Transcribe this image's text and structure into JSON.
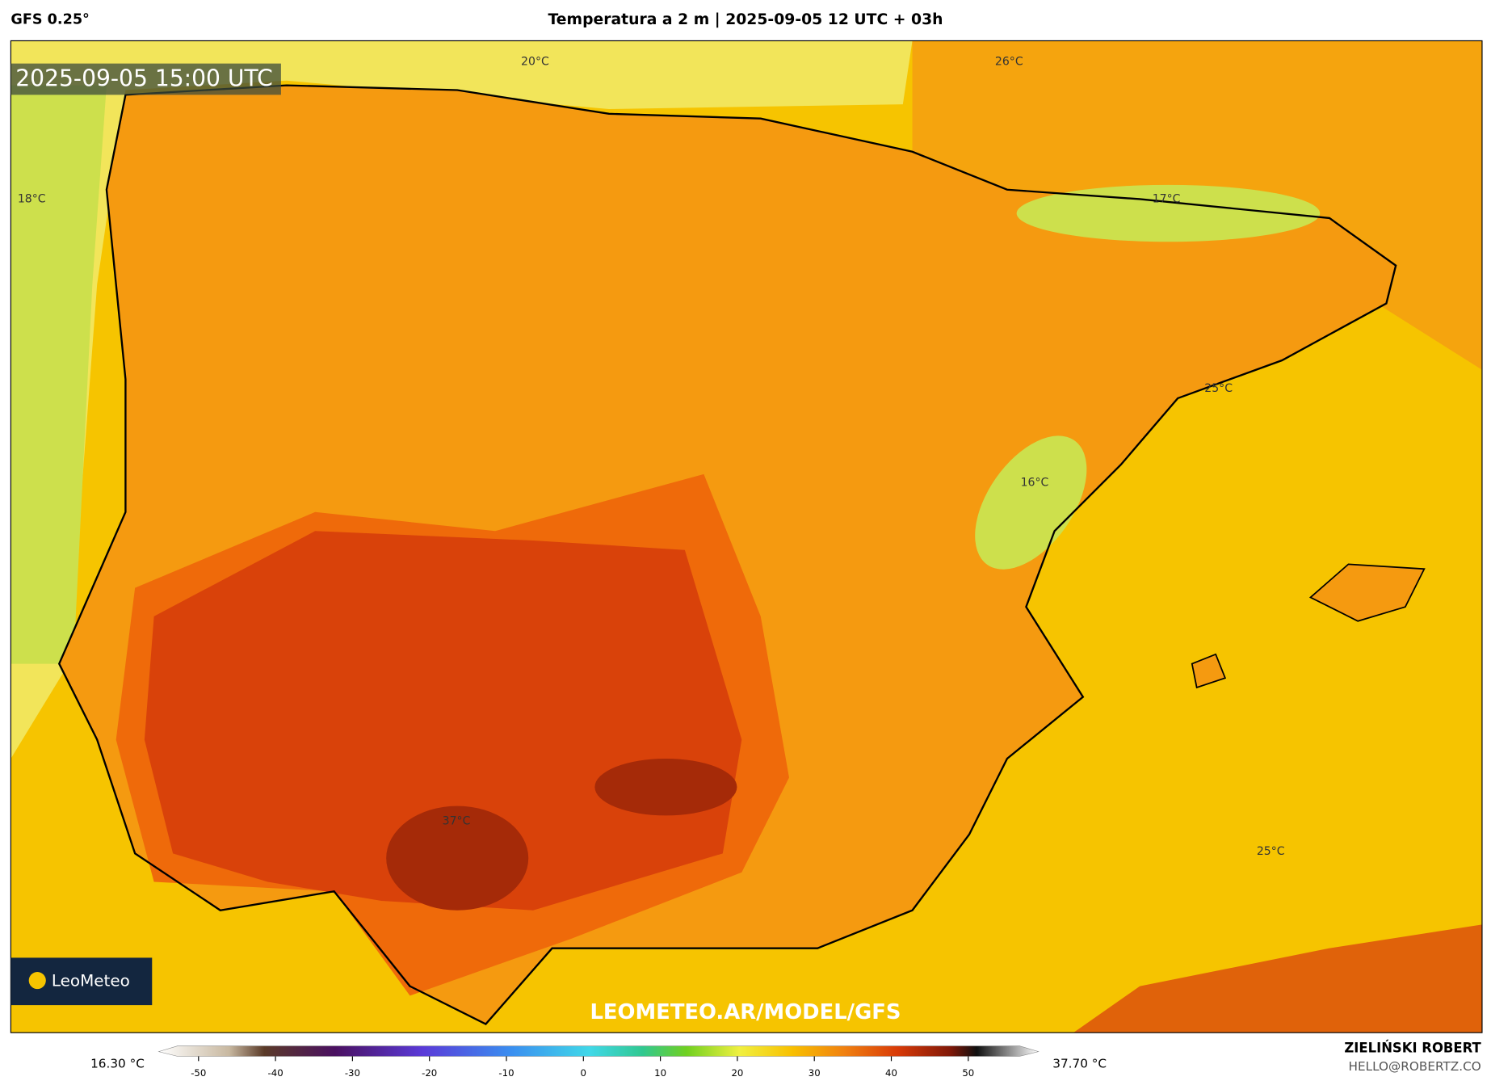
{
  "header": {
    "source": "GFS 0.25°",
    "title": "Temperatura a 2 m | 2025-09-05 12 UTC + 03h"
  },
  "map": {
    "timestamp": "2025-09-05 15:00 UTC",
    "labels": [
      "20°C",
      "26°C",
      "18°C",
      "17°C",
      "25°C",
      "16°C",
      "37°C",
      "25°C"
    ],
    "watermark": "LEOMETEO.AR/MODEL/GFS"
  },
  "logo": {
    "text": "LeoMeteo"
  },
  "colorbar": {
    "min_label": "16.30 °C",
    "max_label": "37.70 °C",
    "ticks": [
      -50,
      -40,
      -30,
      -20,
      -10,
      0,
      10,
      20,
      30,
      40,
      50
    ]
  },
  "footer": {
    "author": "ZIELIŃSKI ROBERT",
    "email": "HELLO@ROBERTZ.CO"
  }
}
